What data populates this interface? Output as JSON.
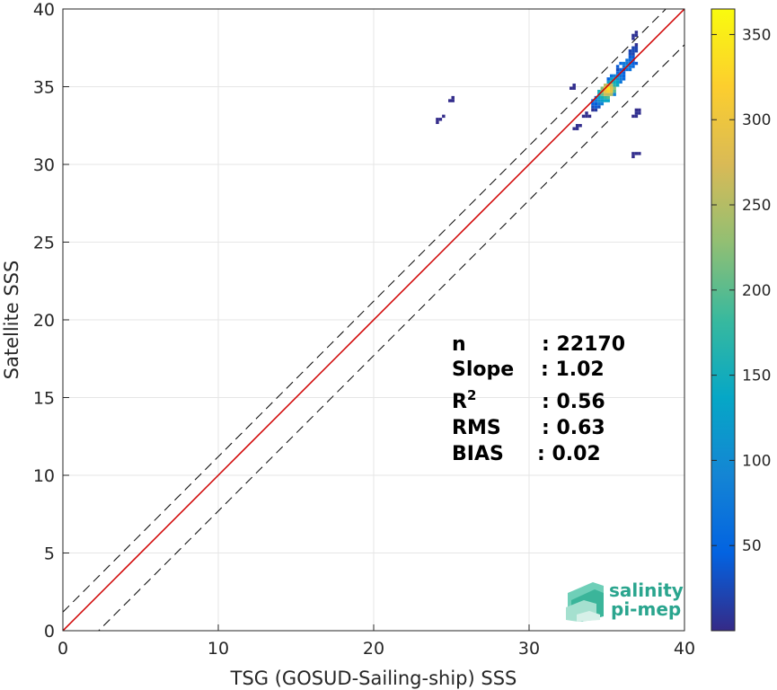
{
  "chart_data": {
    "type": "heatmap",
    "title": "",
    "xlabel": "TSG (GOSUD-Sailing-ship) SSS",
    "ylabel": "Satellite SSS",
    "xlim": [
      0,
      40
    ],
    "ylim": [
      0,
      40
    ],
    "xticks": [
      0,
      10,
      20,
      30,
      40
    ],
    "yticks": [
      0,
      5,
      10,
      15,
      20,
      25,
      30,
      35,
      40
    ],
    "grid": true,
    "colorbar": {
      "colormap": "parula",
      "range": [
        0,
        365
      ],
      "ticks": [
        50,
        100,
        150,
        200,
        250,
        300,
        350
      ]
    },
    "reference_lines": [
      {
        "kind": "identity",
        "slope": 1.0,
        "intercept": 0.0,
        "color": "#000000",
        "style": "solid"
      },
      {
        "kind": "regression",
        "slope": 1.0,
        "intercept": 0.0,
        "color": "#d40000",
        "style": "solid"
      },
      {
        "kind": "upper-bound",
        "slope": 1.0,
        "intercept": 1.2,
        "color": "#000000",
        "style": "dashed"
      },
      {
        "kind": "lower-bound",
        "slope": 1.0,
        "intercept": -2.3,
        "color": "#000000",
        "style": "dashed"
      }
    ],
    "density_clusters": [
      {
        "x": 35.0,
        "y": 34.7,
        "count": 365
      },
      {
        "x": 34.8,
        "y": 34.4,
        "count": 220
      },
      {
        "x": 35.3,
        "y": 35.1,
        "count": 180
      },
      {
        "x": 34.5,
        "y": 34.2,
        "count": 120
      },
      {
        "x": 35.6,
        "y": 35.4,
        "count": 100
      },
      {
        "x": 36.2,
        "y": 36.3,
        "count": 90
      },
      {
        "x": 36.6,
        "y": 37.2,
        "count": 30
      },
      {
        "x": 34.3,
        "y": 33.8,
        "count": 40
      },
      {
        "x": 36.7,
        "y": 38.2,
        "count": 8
      },
      {
        "x": 36.8,
        "y": 33.2,
        "count": 5
      },
      {
        "x": 36.8,
        "y": 30.6,
        "count": 3
      },
      {
        "x": 33.0,
        "y": 32.3,
        "count": 4
      },
      {
        "x": 32.8,
        "y": 34.9,
        "count": 3
      },
      {
        "x": 24.9,
        "y": 34.0,
        "count": 2
      },
      {
        "x": 24.2,
        "y": 32.8,
        "count": 1
      },
      {
        "x": 33.6,
        "y": 33.0,
        "count": 3
      }
    ],
    "stats": [
      {
        "label": "n",
        "value": ": 22170"
      },
      {
        "label": "Slope",
        "value": ": 1.02"
      },
      {
        "label": "R",
        "sup": "2",
        "value": ": 0.56"
      },
      {
        "label": "RMS",
        "value": ": 0.63"
      },
      {
        "label": "BIAS",
        "value": ": 0.02"
      }
    ]
  },
  "logo": {
    "line1": "salinity",
    "line2": "pi-mep"
  }
}
